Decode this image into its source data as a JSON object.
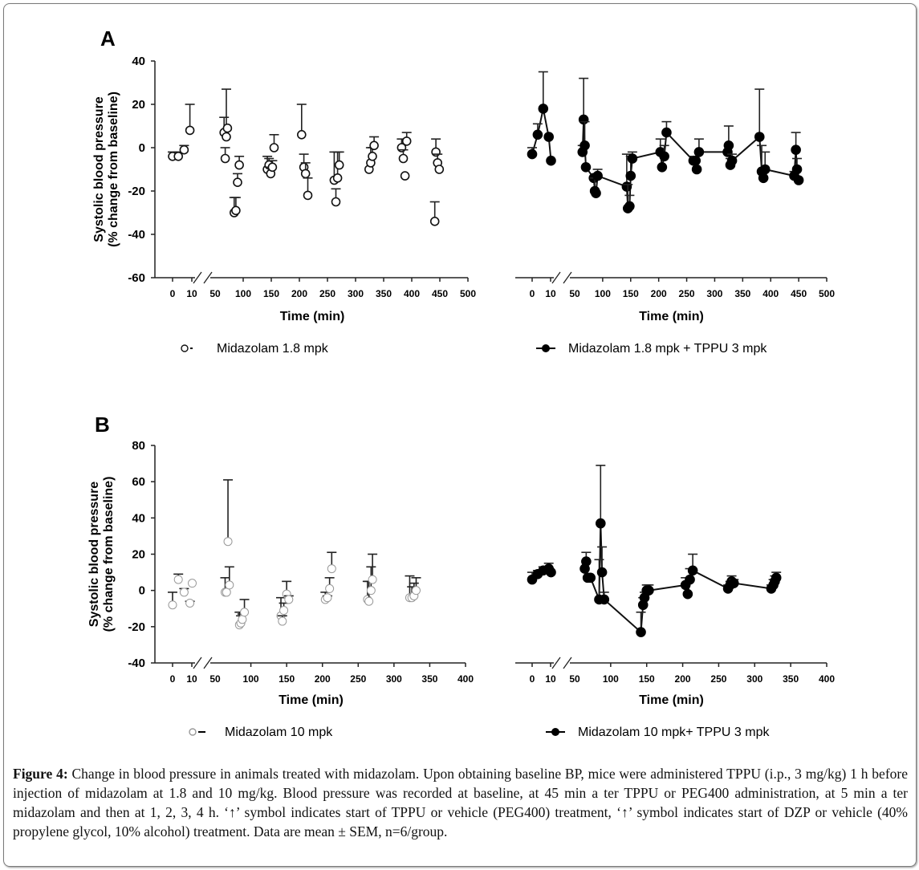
{
  "caption": {
    "label": "Figure 4:",
    "text": " Change in blood pressure in animals treated with midazolam. Upon obtaining baseline BP, mice were administered TPPU (i.p., 3 mg/kg) 1 h before injection of midazolam at 1.8 and 10 mg/kg. Blood pressure was recorded at baseline, at 45 min a ter TPPU or PEG400 administration, at 5 min a ter midazolam and then at 1, 2, 3, 4 h. ‘↑’ symbol indicates start of TPPU or vehicle (PEG400) treatment, ‘↑’ symbol indicates start of DZP or vehicle (40% propylene glycol, 10% alcohol) treatment. Data are mean ± SEM, n=6/group."
  },
  "chart_data": [
    {
      "panel": "A",
      "type": "scatter",
      "side": "left",
      "ylabel_line1": "Systolic blood pressure",
      "ylabel_line2": "(% change from baseline)",
      "xlabel": "Time (min)",
      "ylim": [
        -60,
        40
      ],
      "yticks": [
        40,
        20,
        0,
        -20,
        -40,
        -60
      ],
      "xticks": [
        0,
        10,
        50,
        100,
        150,
        200,
        250,
        300,
        350,
        400,
        450,
        500
      ],
      "xlim": [
        0,
        500
      ],
      "axis_break": [
        10,
        50
      ],
      "legend": {
        "label": "Midazolam 1.8 mpk",
        "marker": "open-circle"
      },
      "series": {
        "name": "Midazolam 1.8 mpk",
        "marker": "open-circle",
        "connected": false,
        "points": [
          {
            "x": 0,
            "y": -4,
            "err": 2
          },
          {
            "x": 3,
            "y": -4,
            "err": 2
          },
          {
            "x": 6,
            "y": -1,
            "err": 2
          },
          {
            "x": 9,
            "y": 8,
            "err": 12
          },
          {
            "x": 66,
            "y": 7,
            "err": 7
          },
          {
            "x": 68,
            "y": -5,
            "err": 5
          },
          {
            "x": 70,
            "y": 5,
            "err": 22
          },
          {
            "x": 72,
            "y": 9,
            "err": 0
          },
          {
            "x": 84,
            "y": -30,
            "err": 7
          },
          {
            "x": 87,
            "y": -29,
            "err": 6
          },
          {
            "x": 90,
            "y": -16,
            "err": 4
          },
          {
            "x": 93,
            "y": -8,
            "err": 4
          },
          {
            "x": 143,
            "y": -10,
            "err": 6
          },
          {
            "x": 146,
            "y": -8,
            "err": 3
          },
          {
            "x": 149,
            "y": -12,
            "err": 3
          },
          {
            "x": 152,
            "y": -9,
            "err": 3
          },
          {
            "x": 155,
            "y": 0,
            "err": 6
          },
          {
            "x": 204,
            "y": 6,
            "err": 14
          },
          {
            "x": 208,
            "y": -9,
            "err": 6
          },
          {
            "x": 211,
            "y": -12,
            "err": 5
          },
          {
            "x": 215,
            "y": -22,
            "err": 8
          },
          {
            "x": 262,
            "y": -15,
            "err": 13
          },
          {
            "x": 265,
            "y": -25,
            "err": 6
          },
          {
            "x": 268,
            "y": -14,
            "err": 12
          },
          {
            "x": 271,
            "y": -8,
            "err": 6
          },
          {
            "x": 324,
            "y": -10,
            "err": 0
          },
          {
            "x": 327,
            "y": -7,
            "err": 7
          },
          {
            "x": 330,
            "y": -4,
            "err": 4
          },
          {
            "x": 333,
            "y": 1,
            "err": 4
          },
          {
            "x": 382,
            "y": 0,
            "err": 4
          },
          {
            "x": 385,
            "y": -5,
            "err": 4
          },
          {
            "x": 388,
            "y": -13,
            "err": 0
          },
          {
            "x": 391,
            "y": 3,
            "err": 4
          },
          {
            "x": 443,
            "y": -2,
            "err": 6
          },
          {
            "x": 446,
            "y": -7,
            "err": 4
          },
          {
            "x": 449,
            "y": -10,
            "err": 0
          },
          {
            "x": 441,
            "y": -34,
            "err": 9
          }
        ]
      }
    },
    {
      "panel": "A",
      "type": "line",
      "side": "right",
      "xlabel": "Time (min)",
      "ylim": [
        -60,
        40
      ],
      "xticks": [
        0,
        10,
        50,
        100,
        150,
        200,
        250,
        300,
        350,
        400,
        450,
        500
      ],
      "xlim": [
        0,
        500
      ],
      "axis_break": [
        10,
        50
      ],
      "legend": {
        "label": "Midazolam 1.8 mpk + TPPU 3 mpk",
        "marker": "filled-circle-line"
      },
      "series": {
        "name": "Midazolam 1.8 mpk + TPPU 3 mpk",
        "marker": "filled-circle",
        "connected": true,
        "points": [
          {
            "x": 0,
            "y": -3,
            "err": 3
          },
          {
            "x": 3,
            "y": 6,
            "err": 5
          },
          {
            "x": 6,
            "y": 18,
            "err": 17
          },
          {
            "x": 9,
            "y": 5,
            "err": 0
          },
          {
            "x": 12,
            "y": -6,
            "err": 0
          },
          {
            "x": 64,
            "y": -2,
            "err": 3
          },
          {
            "x": 66,
            "y": 13,
            "err": 19
          },
          {
            "x": 68,
            "y": 1,
            "err": 11
          },
          {
            "x": 70,
            "y": -9,
            "err": 0
          },
          {
            "x": 84,
            "y": -14,
            "err": 0
          },
          {
            "x": 86,
            "y": -20,
            "err": 6
          },
          {
            "x": 88,
            "y": -21,
            "err": 0
          },
          {
            "x": 91,
            "y": -13,
            "err": 3
          },
          {
            "x": 143,
            "y": -18,
            "err": 15
          },
          {
            "x": 145,
            "y": -28,
            "err": 11
          },
          {
            "x": 148,
            "y": -27,
            "err": 5
          },
          {
            "x": 150,
            "y": -13,
            "err": 9
          },
          {
            "x": 153,
            "y": -5,
            "err": 3
          },
          {
            "x": 203,
            "y": -2,
            "err": 6
          },
          {
            "x": 206,
            "y": -9,
            "err": 0
          },
          {
            "x": 210,
            "y": -4,
            "err": 5
          },
          {
            "x": 214,
            "y": 7,
            "err": 5
          },
          {
            "x": 262,
            "y": -6,
            "err": 2
          },
          {
            "x": 266,
            "y": -6,
            "err": 2
          },
          {
            "x": 268,
            "y": -10,
            "err": 0
          },
          {
            "x": 272,
            "y": -2,
            "err": 6
          },
          {
            "x": 323,
            "y": -2,
            "err": 0
          },
          {
            "x": 325,
            "y": 1,
            "err": 9
          },
          {
            "x": 328,
            "y": -8,
            "err": 3
          },
          {
            "x": 331,
            "y": -6,
            "err": 3
          },
          {
            "x": 380,
            "y": 5,
            "err": 22
          },
          {
            "x": 384,
            "y": -11,
            "err": 12
          },
          {
            "x": 387,
            "y": -14,
            "err": 0
          },
          {
            "x": 390,
            "y": -10,
            "err": 8
          },
          {
            "x": 442,
            "y": -13,
            "err": 2
          },
          {
            "x": 445,
            "y": -1,
            "err": 8
          },
          {
            "x": 447,
            "y": -10,
            "err": 5
          },
          {
            "x": 450,
            "y": -15,
            "err": 0
          }
        ]
      }
    },
    {
      "panel": "B",
      "type": "scatter",
      "side": "left",
      "ylabel_line1": "Systolic blood pressure",
      "ylabel_line2": "(% change from baseline)",
      "xlabel": "Time (min)",
      "ylim": [
        -40,
        80
      ],
      "yticks": [
        80,
        60,
        40,
        20,
        0,
        -20,
        -40
      ],
      "xticks": [
        0,
        10,
        50,
        100,
        150,
        200,
        250,
        300,
        350,
        400
      ],
      "xlim": [
        0,
        400
      ],
      "axis_break": [
        10,
        50
      ],
      "legend": {
        "label": "Midazolam 10 mpk",
        "marker": "open-circle-gray"
      },
      "series": {
        "name": "Midazolam 10 mpk",
        "marker": "open-circle-gray",
        "connected": false,
        "points": [
          {
            "x": 0,
            "y": -8,
            "err": 7
          },
          {
            "x": 3,
            "y": 6,
            "err": 3
          },
          {
            "x": 6,
            "y": -1,
            "err": 2
          },
          {
            "x": 9,
            "y": -7,
            "err": 1
          },
          {
            "x": 12,
            "y": 4,
            "err": 0
          },
          {
            "x": 64,
            "y": -1,
            "err": 8
          },
          {
            "x": 66,
            "y": -1,
            "err": 0
          },
          {
            "x": 68,
            "y": 27,
            "err": 34
          },
          {
            "x": 70,
            "y": 3,
            "err": 10
          },
          {
            "x": 84,
            "y": -19,
            "err": 7
          },
          {
            "x": 86,
            "y": -18,
            "err": 4
          },
          {
            "x": 88,
            "y": -16,
            "err": 3
          },
          {
            "x": 91,
            "y": -12,
            "err": 7
          },
          {
            "x": 142,
            "y": -14,
            "err": 10
          },
          {
            "x": 144,
            "y": -17,
            "err": 3
          },
          {
            "x": 146,
            "y": -11,
            "err": 4
          },
          {
            "x": 150,
            "y": -2,
            "err": 7
          },
          {
            "x": 153,
            "y": -5,
            "err": 2
          },
          {
            "x": 204,
            "y": -5,
            "err": 4
          },
          {
            "x": 207,
            "y": -4,
            "err": 1
          },
          {
            "x": 210,
            "y": 1,
            "err": 6
          },
          {
            "x": 213,
            "y": 12,
            "err": 9
          },
          {
            "x": 263,
            "y": -5,
            "err": 10
          },
          {
            "x": 265,
            "y": -6,
            "err": 11
          },
          {
            "x": 268,
            "y": 0,
            "err": 13
          },
          {
            "x": 270,
            "y": 6,
            "err": 14
          },
          {
            "x": 322,
            "y": -4,
            "err": 12
          },
          {
            "x": 325,
            "y": -4,
            "err": 6
          },
          {
            "x": 328,
            "y": -3,
            "err": 7
          },
          {
            "x": 331,
            "y": 0,
            "err": 7
          }
        ]
      }
    },
    {
      "panel": "B",
      "type": "line",
      "side": "right",
      "xlabel": "Time (min)",
      "ylim": [
        -40,
        80
      ],
      "xticks": [
        0,
        10,
        50,
        100,
        150,
        200,
        250,
        300,
        350,
        400
      ],
      "xlim": [
        0,
        400
      ],
      "axis_break": [
        10,
        50
      ],
      "legend": {
        "label": "Midazolam 10 mpk+ TPPU 3 mpk",
        "marker": "filled-circle-line"
      },
      "series": {
        "name": "Midazolam 10 mpk+ TPPU 3 mpk",
        "marker": "filled-circle",
        "connected": true,
        "points": [
          {
            "x": 0,
            "y": 6,
            "err": 4
          },
          {
            "x": 3,
            "y": 9,
            "err": 2
          },
          {
            "x": 6,
            "y": 11,
            "err": 2
          },
          {
            "x": 9,
            "y": 12,
            "err": 3
          },
          {
            "x": 12,
            "y": 10,
            "err": 0
          },
          {
            "x": 64,
            "y": 12,
            "err": 0
          },
          {
            "x": 66,
            "y": 16,
            "err": 5
          },
          {
            "x": 68,
            "y": 7,
            "err": 0
          },
          {
            "x": 72,
            "y": 7,
            "err": 0
          },
          {
            "x": 84,
            "y": -5,
            "err": 22
          },
          {
            "x": 86,
            "y": 37,
            "err": 32
          },
          {
            "x": 88,
            "y": 10,
            "err": 14
          },
          {
            "x": 91,
            "y": -5,
            "err": 4
          },
          {
            "x": 142,
            "y": -23,
            "err": 11
          },
          {
            "x": 145,
            "y": -8,
            "err": 4
          },
          {
            "x": 147,
            "y": -4,
            "err": 3
          },
          {
            "x": 150,
            "y": 0,
            "err": 3
          },
          {
            "x": 153,
            "y": 0,
            "err": 3
          },
          {
            "x": 204,
            "y": 3,
            "err": 4
          },
          {
            "x": 207,
            "y": -2,
            "err": 0
          },
          {
            "x": 210,
            "y": 6,
            "err": 6
          },
          {
            "x": 214,
            "y": 11,
            "err": 9
          },
          {
            "x": 263,
            "y": 1,
            "err": 2
          },
          {
            "x": 266,
            "y": 3,
            "err": 2
          },
          {
            "x": 268,
            "y": 5,
            "err": 3
          },
          {
            "x": 271,
            "y": 4,
            "err": 2
          },
          {
            "x": 323,
            "y": 1,
            "err": 2
          },
          {
            "x": 326,
            "y": 3,
            "err": 3
          },
          {
            "x": 328,
            "y": 5,
            "err": 3
          },
          {
            "x": 330,
            "y": 7,
            "err": 3
          }
        ]
      }
    }
  ]
}
